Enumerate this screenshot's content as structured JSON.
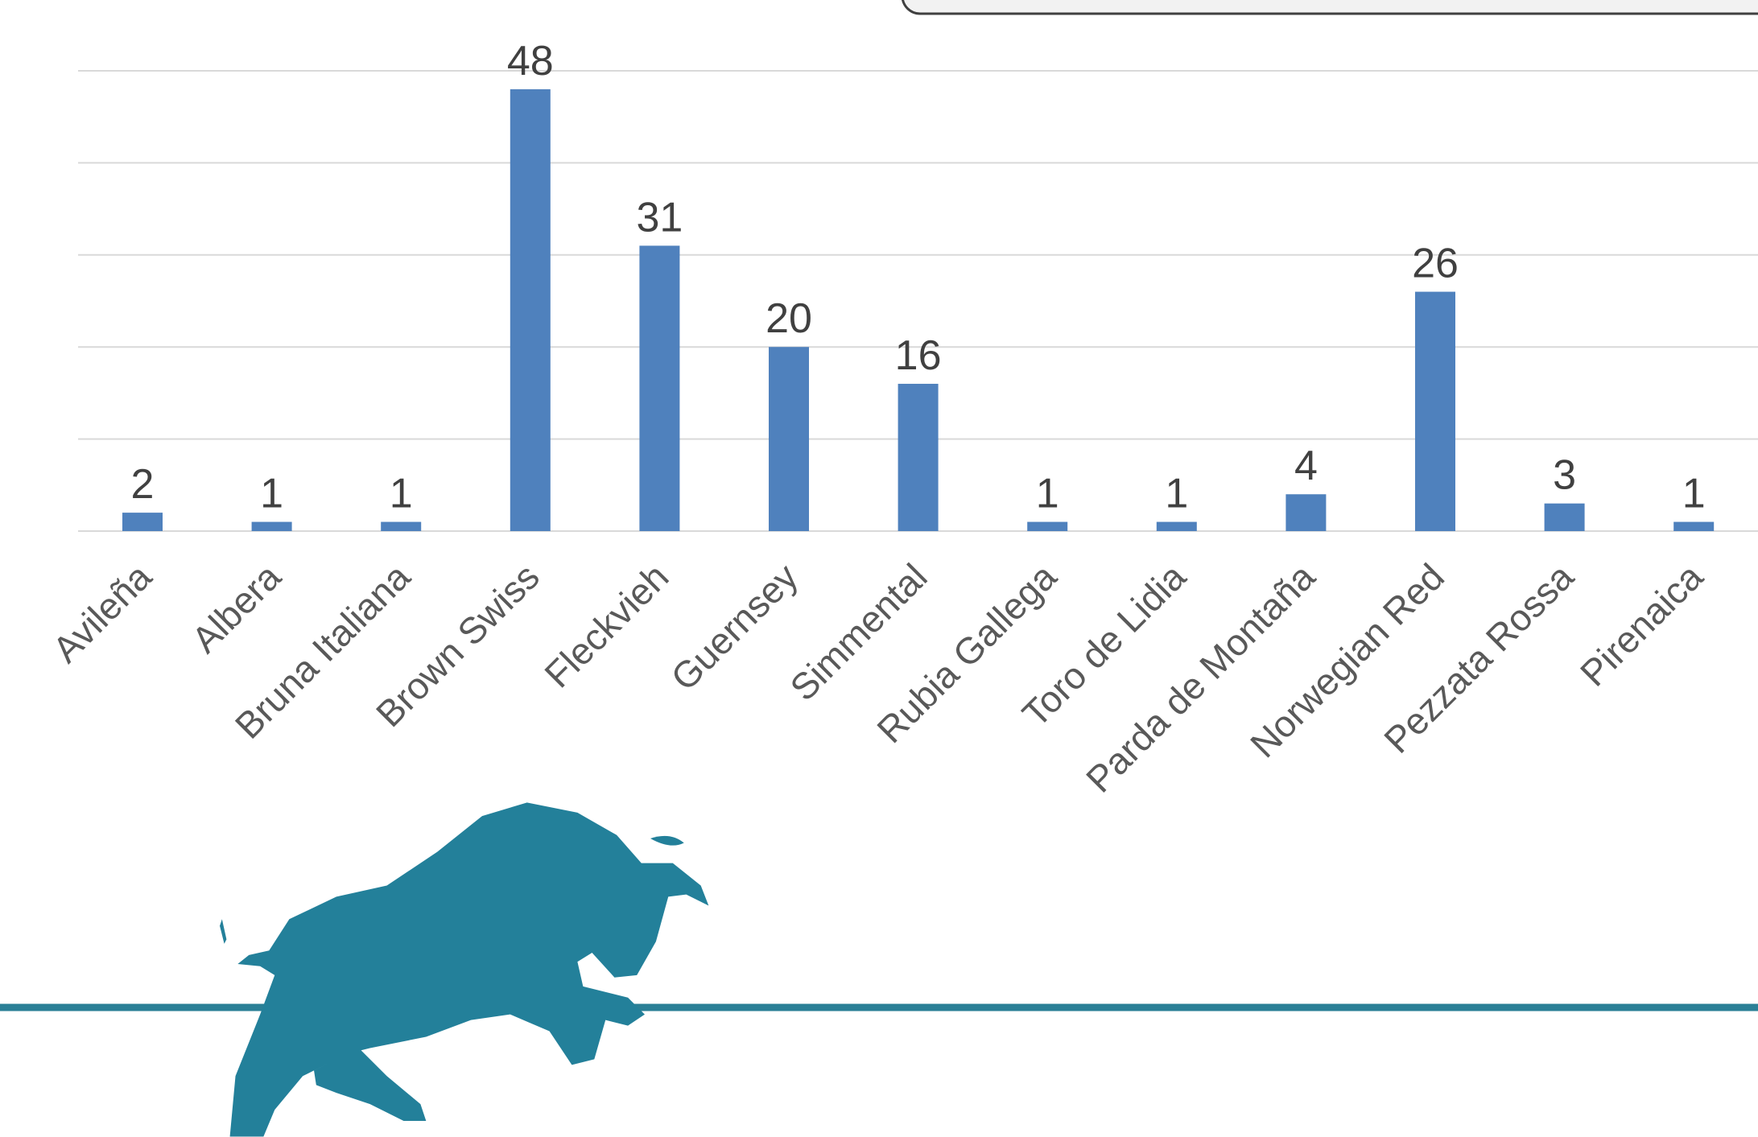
{
  "chart_data": {
    "type": "bar",
    "categories": [
      "Avileña",
      "Albera",
      "Bruna Italiana",
      "Brown Swiss",
      "Fleckvieh",
      "Guernsey",
      "Simmental",
      "Rubia Gallega",
      "Toro de Lidia",
      "Parda de Montaña",
      "Norwegian Red",
      "Pezzata Rossa",
      "Pirenaica"
    ],
    "values": [
      2,
      1,
      1,
      48,
      31,
      20,
      16,
      1,
      1,
      4,
      26,
      3,
      1
    ],
    "color": "#4f81bd",
    "ylim": [
      0,
      50
    ],
    "yticks": [
      0,
      10,
      20,
      30,
      40,
      50
    ],
    "grid": true
  }
}
